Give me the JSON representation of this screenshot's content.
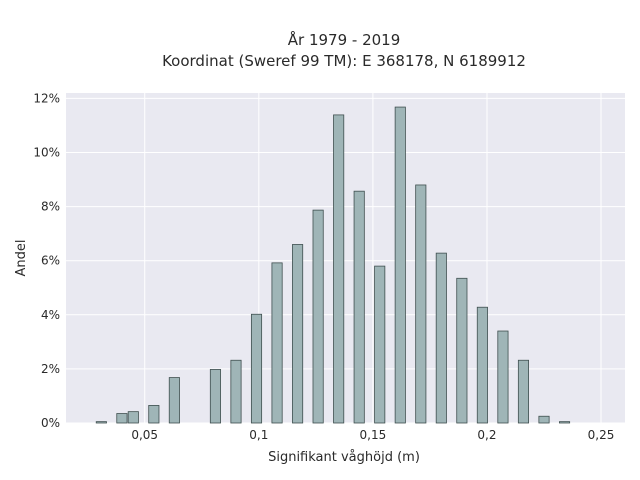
{
  "chart_data": {
    "type": "bar",
    "title": "År 1979 - 2019",
    "subtitle": "Koordinat (Sweref 99 TM): E 368178, N 6189912",
    "xlabel": "Signifikant våghöjd (m)",
    "ylabel": "Andel",
    "xlim": [
      0.0155,
      0.2605
    ],
    "ylim": [
      0,
      0.122
    ],
    "x_ticks": [
      0.05,
      0.1,
      0.15,
      0.2,
      0.25
    ],
    "x_tick_labels": [
      "0,05",
      "0,1",
      "0,15",
      "0,2",
      "0,25"
    ],
    "y_ticks": [
      0,
      0.02,
      0.04,
      0.06,
      0.08,
      0.1,
      0.12
    ],
    "y_tick_labels": [
      "0%",
      "2%",
      "4%",
      "6%",
      "8%",
      "10%",
      "12%"
    ],
    "grid": true,
    "bar_width": 0.0045,
    "x": [
      0.031,
      0.04,
      0.045,
      0.054,
      0.063,
      0.081,
      0.09,
      0.099,
      0.108,
      0.117,
      0.126,
      0.135,
      0.144,
      0.153,
      0.162,
      0.171,
      0.18,
      0.189,
      0.198,
      0.207,
      0.216,
      0.225,
      0.234,
      0.243
    ],
    "values": [
      0.0005,
      0.0035,
      0.0042,
      0.0065,
      0.0168,
      0.0198,
      0.0232,
      0.0402,
      0.0592,
      0.066,
      0.0787,
      0.1139,
      0.0857,
      0.058,
      0.1168,
      0.088,
      0.0628,
      0.0535,
      0.0428,
      0.034,
      0.0232,
      0.0025,
      0.0005,
      0.0
    ],
    "colors": {
      "bar_fill": "#9fb5b7",
      "bar_stroke": "#3f4f4f",
      "plot_bg": "#e9e9f1",
      "grid": "#ffffff"
    }
  }
}
